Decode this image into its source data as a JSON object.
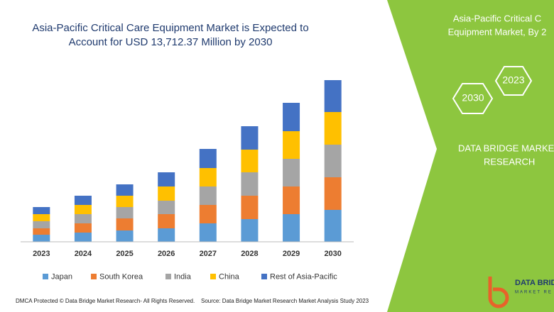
{
  "chart_data": {
    "type": "bar",
    "stacked": true,
    "title": [
      "Asia-Pacific Critical Care Equipment Market is Expected to",
      "Account for USD 13,712.37 Million by 2030"
    ],
    "categories": [
      "2023",
      "2024",
      "2025",
      "2026",
      "2027",
      "2028",
      "2029",
      "2030"
    ],
    "series": [
      {
        "name": "Japan",
        "color": "#5b9bd5",
        "values": [
          10,
          13,
          16,
          19,
          26,
          32,
          39,
          45
        ]
      },
      {
        "name": "South Korea",
        "color": "#ed7d31",
        "values": [
          9,
          13,
          17,
          20,
          26,
          33,
          39,
          46
        ]
      },
      {
        "name": "India",
        "color": "#a5a5a5",
        "values": [
          10,
          13,
          16,
          19,
          26,
          33,
          39,
          46
        ]
      },
      {
        "name": "China",
        "color": "#ffc000",
        "values": [
          10,
          13,
          16,
          20,
          26,
          32,
          39,
          46
        ]
      },
      {
        "name": "Rest of Asia-Pacific",
        "color": "#4472c4",
        "values": [
          10,
          13,
          16,
          20,
          27,
          33,
          40,
          45
        ]
      }
    ]
  },
  "panel": {
    "heading": [
      "Asia-Pacific Critical C",
      "Equipment Market, By 2"
    ],
    "hexagons": [
      "2023",
      "2030"
    ],
    "brand": [
      "DATA BRIDGE MARKE",
      "RESEARCH"
    ],
    "logo": [
      "DATA BRID",
      "MARKET RE"
    ]
  },
  "footer": {
    "left": "DMCA Protected © Data Bridge Market Research- All Rights Reserved.",
    "right": "Source: Data Bridge Market Research Market Analysis Study 2023"
  }
}
